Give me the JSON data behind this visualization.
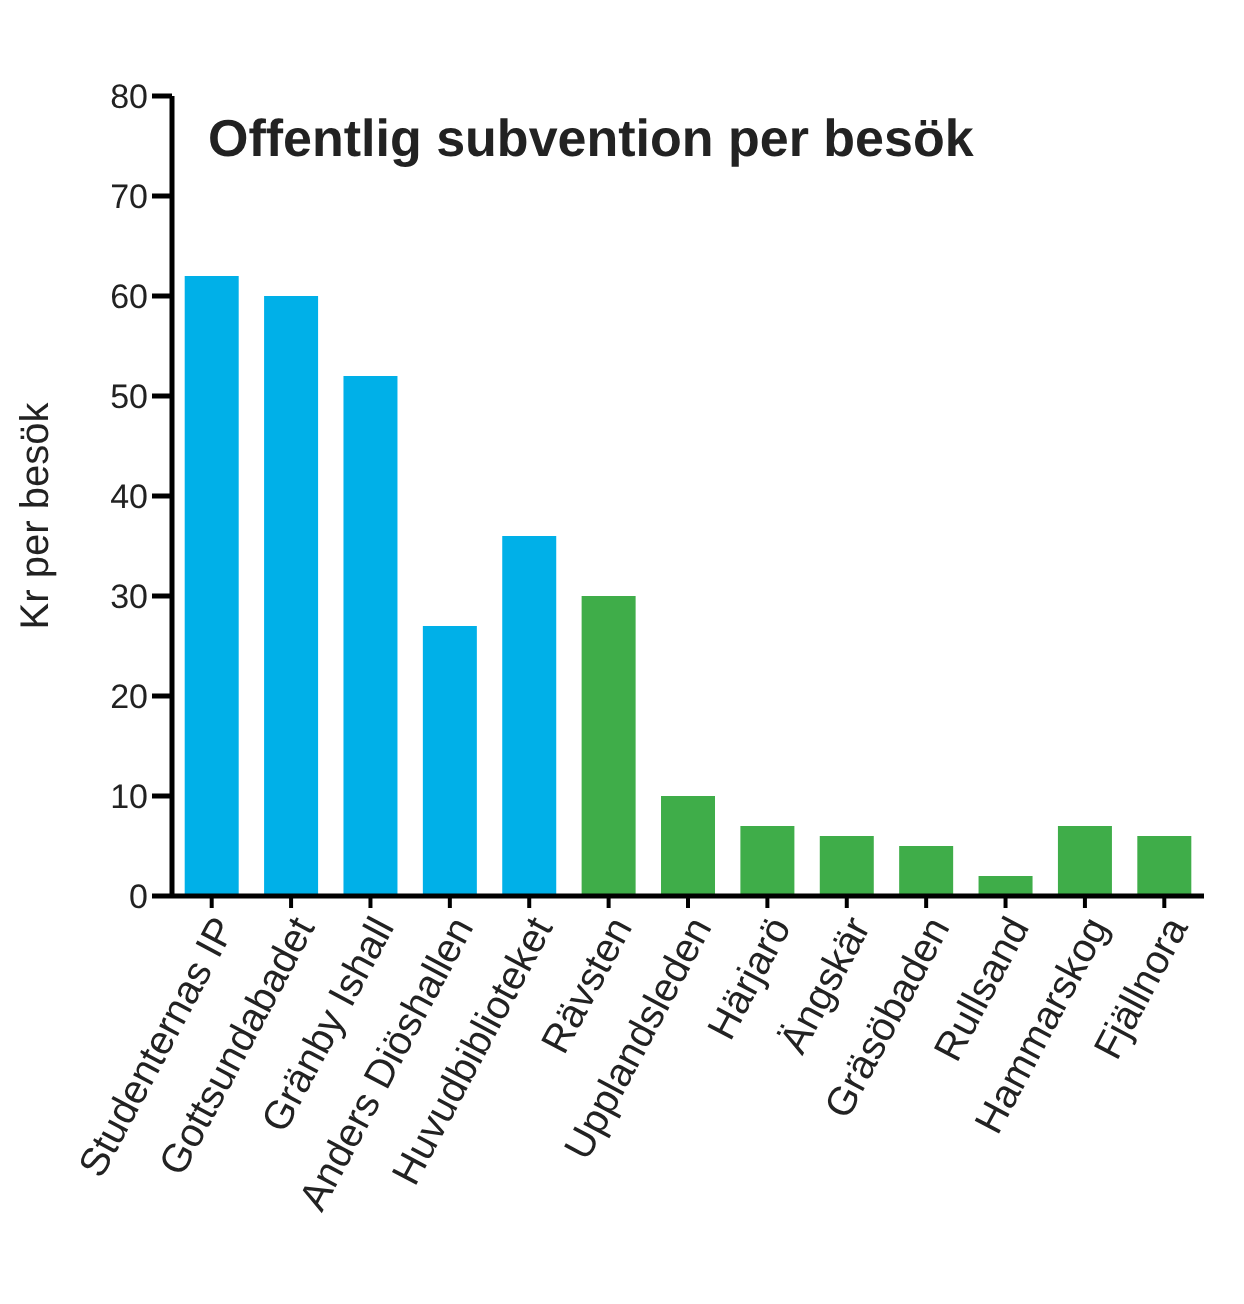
{
  "chart_data": {
    "type": "bar",
    "title": "Offentlig subvention per besök",
    "ylabel": "Kr per besök",
    "categories": [
      "Studenternas IP",
      "Gottsundabadet",
      "Gränby Ishall",
      "Anders Diöshallen",
      "Huvudbiblioteket",
      "Rävsten",
      "Upplandsleden",
      "Härjarö",
      "Ängskär",
      "Gräsöbaden",
      "Rullsand",
      "Hammarskog",
      "Fjällnora"
    ],
    "values": [
      62,
      60,
      52,
      27,
      36,
      30,
      10,
      7,
      6,
      5,
      2,
      7,
      6
    ],
    "colors": [
      "#00b0e8",
      "#00b0e8",
      "#00b0e8",
      "#00b0e8",
      "#00b0e8",
      "#3fad49",
      "#3fad49",
      "#3fad49",
      "#3fad49",
      "#3fad49",
      "#3fad49",
      "#3fad49",
      "#3fad49"
    ],
    "ylim": [
      0,
      80
    ],
    "yticks": [
      0,
      10,
      20,
      30,
      40,
      50,
      60,
      70,
      80
    ],
    "grid": false,
    "legend": false
  }
}
